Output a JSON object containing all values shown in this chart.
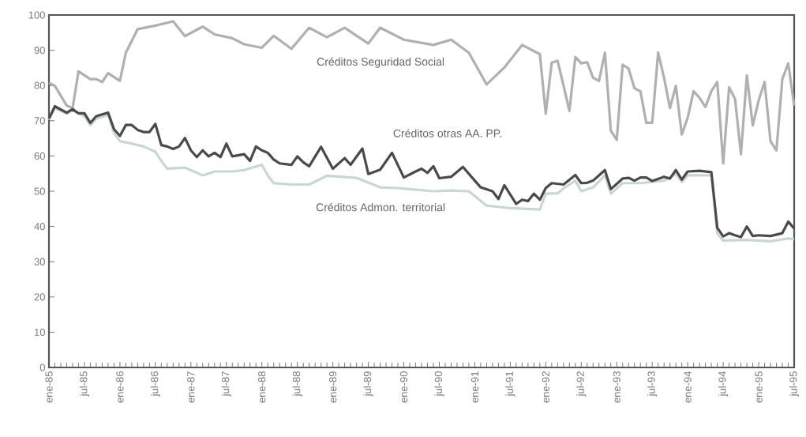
{
  "chart_data": {
    "type": "line",
    "xlim": [
      "1985-01",
      "1995-07"
    ],
    "ylim": [
      0,
      100
    ],
    "yticks": [
      0,
      10,
      20,
      30,
      40,
      50,
      60,
      70,
      80,
      90,
      100
    ],
    "xticks": [
      {
        "value": "1985-01",
        "label": "ene-85"
      },
      {
        "value": "1985-07",
        "label": "jul-85"
      },
      {
        "value": "1986-01",
        "label": "ene-86"
      },
      {
        "value": "1986-07",
        "label": "jul-86"
      },
      {
        "value": "1987-01",
        "label": "ene-87"
      },
      {
        "value": "1987-07",
        "label": "jul-87"
      },
      {
        "value": "1988-01",
        "label": "ene-88"
      },
      {
        "value": "1988-07",
        "label": "jul-88"
      },
      {
        "value": "1989-01",
        "label": "ene-89"
      },
      {
        "value": "1989-07",
        "label": "jul-89"
      },
      {
        "value": "1990-01",
        "label": "ene-90"
      },
      {
        "value": "1990-07",
        "label": "jul-90"
      },
      {
        "value": "1991-01",
        "label": "ene-91"
      },
      {
        "value": "1991-07",
        "label": "jul-91"
      },
      {
        "value": "1992-01",
        "label": "ene-92"
      },
      {
        "value": "1992-07",
        "label": "jul-92"
      },
      {
        "value": "1993-01",
        "label": "ene-93"
      },
      {
        "value": "1993-07",
        "label": "jul-93"
      },
      {
        "value": "1994-01",
        "label": "ene-94"
      },
      {
        "value": "1994-07",
        "label": "jul-94"
      },
      {
        "value": "1995-01",
        "label": "ene-95"
      },
      {
        "value": "1995-07",
        "label": "jul-95"
      }
    ],
    "legend": false,
    "grid": false,
    "marker": "none",
    "line_style": "solid",
    "series": [
      {
        "name": "Créditos Seguridad Social",
        "color": "#b0b0b0",
        "x": [
          "1985-01",
          "1985-02",
          "1985-04",
          "1985-05",
          "1985-06",
          "1985-08",
          "1985-09",
          "1985-10",
          "1985-11",
          "1986-01",
          "1986-02",
          "1986-04",
          "1986-07",
          "1986-10",
          "1986-12",
          "1987-03",
          "1987-05",
          "1987-08",
          "1987-10",
          "1988-01",
          "1988-03",
          "1988-06",
          "1988-09",
          "1988-12",
          "1989-03",
          "1989-07",
          "1989-09",
          "1990-01",
          "1990-06",
          "1990-09",
          "1990-12",
          "1991-03",
          "1991-06",
          "1991-09",
          "1991-12",
          "1992-01",
          "1992-02",
          "1992-03",
          "1992-04",
          "1992-05",
          "1992-06",
          "1992-07",
          "1992-08",
          "1992-09",
          "1992-10",
          "1992-11",
          "1992-12",
          "1993-01",
          "1993-02",
          "1993-03",
          "1993-04",
          "1993-05",
          "1993-06",
          "1993-07",
          "1993-08",
          "1993-09",
          "1993-10",
          "1993-11",
          "1993-12",
          "1994-01",
          "1994-02",
          "1994-03",
          "1994-04",
          "1994-05",
          "1994-06",
          "1994-07",
          "1994-08",
          "1994-09",
          "1994-10",
          "1994-11",
          "1994-12",
          "1995-01",
          "1995-02",
          "1995-03",
          "1995-04",
          "1995-05",
          "1995-06",
          "1995-07"
        ],
        "values": [
          80.8,
          79.9,
          74.3,
          73.6,
          84,
          81.8,
          81.8,
          81,
          83.5,
          81.3,
          89.3,
          96,
          97,
          98.2,
          94,
          96.7,
          94.5,
          93.4,
          91.7,
          90.7,
          94.1,
          90.4,
          96.4,
          93.7,
          96.4,
          91.9,
          96.4,
          93,
          91.5,
          93,
          89.3,
          80.3,
          85.1,
          91.5,
          88.9,
          72,
          86.5,
          87,
          80,
          72.8,
          88.1,
          86.3,
          86.6,
          82.2,
          81.3,
          89.3,
          67.2,
          64.6,
          85.9,
          84.8,
          79.2,
          78.4,
          69.4,
          69.4,
          89.3,
          82.2,
          73.6,
          79.9,
          66.1,
          70.9,
          78.4,
          76.5,
          73.9,
          78.4,
          81,
          57.9,
          79.5,
          76.2,
          60.5,
          82.9,
          68.7,
          75.8,
          81,
          64.2,
          61.6,
          81.8,
          86.3,
          74.3
        ]
      },
      {
        "name": "Créditos Admon. territorial",
        "color": "#c9d6d6",
        "x": [
          "1985-01",
          "1985-02",
          "1985-04",
          "1985-05",
          "1985-07",
          "1985-08",
          "1985-09",
          "1985-11",
          "1985-12",
          "1986-01",
          "1986-03",
          "1986-05",
          "1986-07",
          "1986-08",
          "1986-09",
          "1986-12",
          "1987-03",
          "1987-05",
          "1987-08",
          "1987-10",
          "1988-01",
          "1988-02",
          "1988-03",
          "1988-06",
          "1988-09",
          "1988-12",
          "1989-05",
          "1989-09",
          "1989-12",
          "1990-06",
          "1990-09",
          "1990-12",
          "1991-03",
          "1991-07",
          "1991-12",
          "1992-01",
          "1992-03",
          "1992-04",
          "1992-06",
          "1992-07",
          "1992-09",
          "1992-11",
          "1992-12",
          "1993-02",
          "1993-05",
          "1993-09",
          "1993-11",
          "1993-12",
          "1994-01",
          "1994-05",
          "1994-06",
          "1994-07",
          "1994-11",
          "1995-03",
          "1995-06",
          "1995-07"
        ],
        "values": [
          70.3,
          73.6,
          72,
          73,
          71.3,
          68.7,
          70.6,
          71.7,
          66.5,
          64.2,
          63.5,
          62.7,
          61.2,
          58.6,
          56.4,
          56.7,
          54.5,
          55.6,
          55.6,
          56,
          57.5,
          54.5,
          52.3,
          51.9,
          51.9,
          54.4,
          53.8,
          51.1,
          50.9,
          50,
          50.2,
          50,
          45.9,
          45.2,
          44.8,
          49.3,
          49.4,
          50.8,
          53,
          50,
          51.1,
          54.5,
          49.3,
          52.3,
          52.3,
          53,
          54.9,
          52.6,
          54.5,
          54.5,
          38.1,
          36,
          36.2,
          35.8,
          36.6,
          36.4
        ]
      },
      {
        "name": "Créditos otras AA. PP.",
        "color": "#4a4a4a",
        "x": [
          "1985-01",
          "1985-02",
          "1985-04",
          "1985-05",
          "1985-06",
          "1985-07",
          "1985-08",
          "1985-09",
          "1985-11",
          "1985-12",
          "1986-01",
          "1986-02",
          "1986-03",
          "1986-04",
          "1986-05",
          "1986-06",
          "1986-07",
          "1986-08",
          "1986-09",
          "1986-10",
          "1986-11",
          "1986-12",
          "1987-01",
          "1987-02",
          "1987-03",
          "1987-04",
          "1987-05",
          "1987-06",
          "1987-07",
          "1987-08",
          "1987-10",
          "1987-11",
          "1987-12",
          "1988-01",
          "1988-02",
          "1988-03",
          "1988-04",
          "1988-06",
          "1988-07",
          "1988-08",
          "1988-09",
          "1988-11",
          "1989-01",
          "1989-03",
          "1989-04",
          "1989-06",
          "1989-07",
          "1989-09",
          "1989-11",
          "1990-01",
          "1990-03",
          "1990-04",
          "1990-05",
          "1990-06",
          "1990-07",
          "1990-09",
          "1990-11",
          "1991-01",
          "1991-02",
          "1991-04",
          "1991-05",
          "1991-06",
          "1991-08",
          "1991-09",
          "1991-10",
          "1991-11",
          "1991-12",
          "1992-01",
          "1992-02",
          "1992-04",
          "1992-06",
          "1992-07",
          "1992-08",
          "1992-09",
          "1992-11",
          "1992-12",
          "1993-02",
          "1993-03",
          "1993-04",
          "1993-05",
          "1993-06",
          "1993-07",
          "1993-09",
          "1993-10",
          "1993-11",
          "1993-12",
          "1994-01",
          "1994-03",
          "1994-05",
          "1994-06",
          "1994-07",
          "1994-08",
          "1994-09",
          "1994-10",
          "1994-11",
          "1994-12",
          "1995-01",
          "1995-03",
          "1995-05",
          "1995-06",
          "1995-07"
        ],
        "values": [
          70.6,
          74.1,
          72.3,
          73.3,
          72.1,
          72.1,
          69.4,
          71.3,
          72.3,
          67.6,
          65.7,
          68.8,
          68.8,
          67.4,
          66.8,
          66.8,
          69.1,
          63.1,
          62.7,
          62,
          62.7,
          65.1,
          61.6,
          59.7,
          61.6,
          59.9,
          60.9,
          59.7,
          63.5,
          59.9,
          60.5,
          58.6,
          62.7,
          61.6,
          60.9,
          59,
          57.9,
          57.5,
          59.9,
          58.2,
          57.1,
          62.6,
          56.4,
          59.4,
          57.5,
          62.1,
          54.9,
          56.1,
          60.9,
          53.9,
          55.6,
          56.4,
          55.2,
          57.1,
          53.7,
          54.1,
          56.9,
          53,
          51.1,
          50,
          47.8,
          51.7,
          46.4,
          47.6,
          47.2,
          49.3,
          47.6,
          50.9,
          52.3,
          51.9,
          54.6,
          52.3,
          52.4,
          53,
          56,
          50.6,
          53.6,
          53.8,
          53,
          53.9,
          53.9,
          52.9,
          54.1,
          53.6,
          56,
          53.3,
          55.6,
          55.8,
          55.4,
          39.6,
          37.2,
          38.1,
          37.5,
          37,
          40,
          37.3,
          37.5,
          37.3,
          38.1,
          41.4,
          39.4
        ]
      }
    ]
  }
}
